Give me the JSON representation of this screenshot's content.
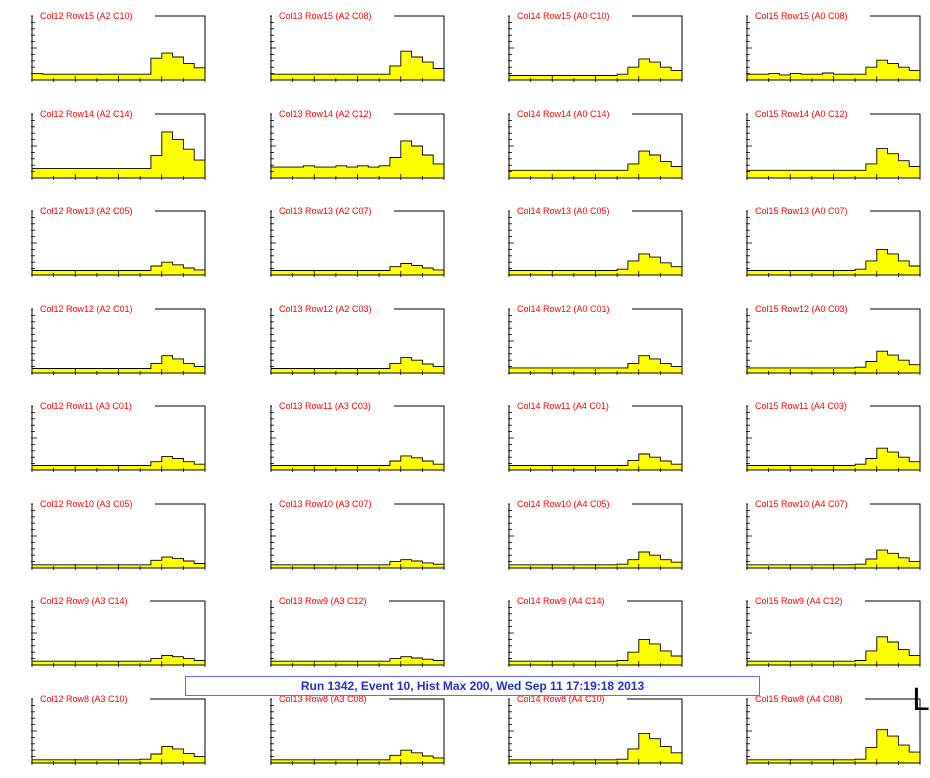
{
  "colors": {
    "fill": "#ffff00",
    "outline": "#000000",
    "title": "#ff0000",
    "status_text": "#1f2fd6",
    "status_border": "#5a6cff"
  },
  "status_bar": {
    "text": "Run 1342, Event 10, Hist Max 200, Wed Sep 11 17:19:18 2013"
  },
  "edge_glyph": "L",
  "chart_data": {
    "type": "histogram-grid",
    "rows": 8,
    "cols": 4,
    "bins": 16,
    "ylim": [
      0,
      1
    ],
    "panels": [
      {
        "title": "Col12 Row15 (A2 C10)",
        "values": [
          0.1,
          0.09,
          0.09,
          0.09,
          0.09,
          0.09,
          0.09,
          0.09,
          0.09,
          0.09,
          0.09,
          0.34,
          0.42,
          0.36,
          0.26,
          0.19
        ]
      },
      {
        "title": "Col13 Row15 (A2 C08)",
        "values": [
          0.09,
          0.09,
          0.09,
          0.09,
          0.09,
          0.09,
          0.09,
          0.09,
          0.09,
          0.09,
          0.09,
          0.22,
          0.45,
          0.36,
          0.28,
          0.18
        ]
      },
      {
        "title": "Col14 Row15 (A0 C10)",
        "values": [
          0.07,
          0.07,
          0.07,
          0.07,
          0.07,
          0.07,
          0.07,
          0.07,
          0.07,
          0.07,
          0.09,
          0.2,
          0.33,
          0.28,
          0.2,
          0.15
        ]
      },
      {
        "title": "Col15 Row15 (A0 C08)",
        "values": [
          0.09,
          0.09,
          0.1,
          0.08,
          0.1,
          0.09,
          0.09,
          0.11,
          0.09,
          0.09,
          0.09,
          0.2,
          0.31,
          0.26,
          0.2,
          0.15
        ]
      },
      {
        "title": "Col12 Row14 (A2 C14)",
        "values": [
          0.15,
          0.15,
          0.15,
          0.15,
          0.15,
          0.15,
          0.15,
          0.15,
          0.15,
          0.15,
          0.15,
          0.35,
          0.72,
          0.6,
          0.45,
          0.28
        ]
      },
      {
        "title": "Col13 Row14 (A2 C12)",
        "values": [
          0.17,
          0.17,
          0.17,
          0.19,
          0.17,
          0.17,
          0.19,
          0.17,
          0.19,
          0.17,
          0.19,
          0.32,
          0.58,
          0.5,
          0.36,
          0.22
        ]
      },
      {
        "title": "Col14 Row14 (A0 C14)",
        "values": [
          0.12,
          0.12,
          0.12,
          0.12,
          0.12,
          0.12,
          0.12,
          0.12,
          0.12,
          0.12,
          0.12,
          0.22,
          0.42,
          0.36,
          0.26,
          0.18
        ]
      },
      {
        "title": "Col15 Row14 (A0 C12)",
        "values": [
          0.12,
          0.12,
          0.12,
          0.12,
          0.12,
          0.12,
          0.12,
          0.12,
          0.12,
          0.12,
          0.12,
          0.22,
          0.46,
          0.38,
          0.27,
          0.18
        ]
      },
      {
        "title": "Col12 Row13 (A2 C05)",
        "values": [
          0.07,
          0.07,
          0.07,
          0.07,
          0.07,
          0.07,
          0.07,
          0.07,
          0.07,
          0.07,
          0.07,
          0.14,
          0.2,
          0.16,
          0.11,
          0.08
        ]
      },
      {
        "title": "Col13 Row13 (A2 C07)",
        "values": [
          0.07,
          0.07,
          0.07,
          0.07,
          0.07,
          0.07,
          0.07,
          0.07,
          0.07,
          0.07,
          0.07,
          0.13,
          0.18,
          0.15,
          0.11,
          0.08
        ]
      },
      {
        "title": "Col14 Row13 (A0 C05)",
        "values": [
          0.07,
          0.07,
          0.07,
          0.07,
          0.07,
          0.07,
          0.07,
          0.07,
          0.07,
          0.07,
          0.09,
          0.22,
          0.33,
          0.28,
          0.19,
          0.13
        ]
      },
      {
        "title": "Col15 Row13 (A0 C07)",
        "values": [
          0.07,
          0.07,
          0.07,
          0.07,
          0.07,
          0.07,
          0.07,
          0.07,
          0.07,
          0.07,
          0.09,
          0.22,
          0.4,
          0.33,
          0.22,
          0.14
        ]
      },
      {
        "title": "Col12 Row12 (A2 C01)",
        "values": [
          0.07,
          0.07,
          0.07,
          0.07,
          0.07,
          0.07,
          0.07,
          0.07,
          0.07,
          0.07,
          0.07,
          0.15,
          0.27,
          0.22,
          0.15,
          0.1
        ]
      },
      {
        "title": "Col13 Row12 (A2 C03)",
        "values": [
          0.07,
          0.07,
          0.07,
          0.07,
          0.07,
          0.07,
          0.07,
          0.07,
          0.07,
          0.07,
          0.07,
          0.15,
          0.24,
          0.2,
          0.14,
          0.1
        ]
      },
      {
        "title": "Col14 Row12 (A0 C01)",
        "values": [
          0.08,
          0.08,
          0.08,
          0.08,
          0.08,
          0.08,
          0.08,
          0.08,
          0.08,
          0.08,
          0.08,
          0.15,
          0.27,
          0.22,
          0.15,
          0.1
        ]
      },
      {
        "title": "Col15 Row12 (A0 C03)",
        "values": [
          0.08,
          0.08,
          0.08,
          0.08,
          0.08,
          0.08,
          0.08,
          0.08,
          0.08,
          0.08,
          0.09,
          0.18,
          0.34,
          0.28,
          0.2,
          0.13
        ]
      },
      {
        "title": "Col12 Row11 (A3 C01)",
        "values": [
          0.07,
          0.07,
          0.07,
          0.07,
          0.07,
          0.07,
          0.07,
          0.07,
          0.07,
          0.07,
          0.07,
          0.13,
          0.21,
          0.18,
          0.13,
          0.09
        ]
      },
      {
        "title": "Col13 Row11 (A3 C03)",
        "values": [
          0.07,
          0.07,
          0.07,
          0.07,
          0.07,
          0.07,
          0.07,
          0.07,
          0.07,
          0.07,
          0.07,
          0.14,
          0.22,
          0.19,
          0.14,
          0.09
        ]
      },
      {
        "title": "Col14 Row11 (A4 C01)",
        "values": [
          0.07,
          0.07,
          0.07,
          0.07,
          0.07,
          0.07,
          0.07,
          0.07,
          0.07,
          0.07,
          0.07,
          0.15,
          0.25,
          0.2,
          0.14,
          0.09
        ]
      },
      {
        "title": "Col15 Row11 (A4 C03)",
        "values": [
          0.07,
          0.07,
          0.07,
          0.07,
          0.07,
          0.07,
          0.07,
          0.07,
          0.07,
          0.07,
          0.09,
          0.18,
          0.34,
          0.28,
          0.2,
          0.13
        ]
      },
      {
        "title": "Col12 Row10 (A3 C05)",
        "values": [
          0.05,
          0.05,
          0.05,
          0.05,
          0.05,
          0.05,
          0.05,
          0.05,
          0.05,
          0.05,
          0.05,
          0.12,
          0.17,
          0.15,
          0.11,
          0.07
        ]
      },
      {
        "title": "Col13 Row10 (A3 C07)",
        "values": [
          0.05,
          0.05,
          0.05,
          0.05,
          0.05,
          0.05,
          0.05,
          0.05,
          0.05,
          0.05,
          0.05,
          0.1,
          0.13,
          0.11,
          0.08,
          0.06
        ]
      },
      {
        "title": "Col14 Row10 (A4 C05)",
        "values": [
          0.05,
          0.05,
          0.05,
          0.05,
          0.05,
          0.05,
          0.05,
          0.05,
          0.05,
          0.05,
          0.06,
          0.13,
          0.25,
          0.2,
          0.13,
          0.09
        ]
      },
      {
        "title": "Col15 Row10 (A4 C07)",
        "values": [
          0.05,
          0.05,
          0.05,
          0.05,
          0.05,
          0.05,
          0.05,
          0.05,
          0.05,
          0.05,
          0.06,
          0.14,
          0.28,
          0.23,
          0.16,
          0.1
        ]
      },
      {
        "title": "Col12 Row9 (A3 C14)",
        "values": [
          0.06,
          0.06,
          0.06,
          0.06,
          0.06,
          0.06,
          0.06,
          0.06,
          0.06,
          0.06,
          0.06,
          0.1,
          0.15,
          0.13,
          0.1,
          0.07
        ]
      },
      {
        "title": "Col13 Row9 (A3 C12)",
        "values": [
          0.06,
          0.06,
          0.06,
          0.06,
          0.06,
          0.06,
          0.06,
          0.06,
          0.06,
          0.06,
          0.06,
          0.1,
          0.13,
          0.11,
          0.09,
          0.07
        ]
      },
      {
        "title": "Col14 Row9 (A4 C14)",
        "values": [
          0.06,
          0.06,
          0.06,
          0.06,
          0.06,
          0.06,
          0.06,
          0.06,
          0.06,
          0.06,
          0.07,
          0.2,
          0.4,
          0.33,
          0.22,
          0.14
        ]
      },
      {
        "title": "Col15 Row9 (A4 C12)",
        "values": [
          0.06,
          0.06,
          0.06,
          0.06,
          0.06,
          0.06,
          0.06,
          0.06,
          0.06,
          0.06,
          0.07,
          0.22,
          0.44,
          0.36,
          0.24,
          0.15
        ]
      },
      {
        "title": "Col12 Row8 (A3 C10)",
        "values": [
          0.05,
          0.05,
          0.05,
          0.05,
          0.05,
          0.05,
          0.05,
          0.05,
          0.05,
          0.05,
          0.06,
          0.14,
          0.26,
          0.22,
          0.15,
          0.1
        ]
      },
      {
        "title": "Col13 Row8 (A3 C08)",
        "values": [
          0.05,
          0.05,
          0.05,
          0.05,
          0.05,
          0.05,
          0.05,
          0.05,
          0.05,
          0.05,
          0.05,
          0.12,
          0.2,
          0.16,
          0.11,
          0.08
        ]
      },
      {
        "title": "Col14 Row8 (A4 C10)",
        "values": [
          0.05,
          0.05,
          0.05,
          0.05,
          0.05,
          0.05,
          0.05,
          0.05,
          0.05,
          0.05,
          0.06,
          0.22,
          0.46,
          0.38,
          0.26,
          0.16
        ]
      },
      {
        "title": "Col15 Row8 (A4 C08)",
        "values": [
          0.05,
          0.05,
          0.05,
          0.05,
          0.05,
          0.05,
          0.05,
          0.05,
          0.05,
          0.05,
          0.06,
          0.24,
          0.52,
          0.42,
          0.28,
          0.17
        ]
      }
    ]
  }
}
